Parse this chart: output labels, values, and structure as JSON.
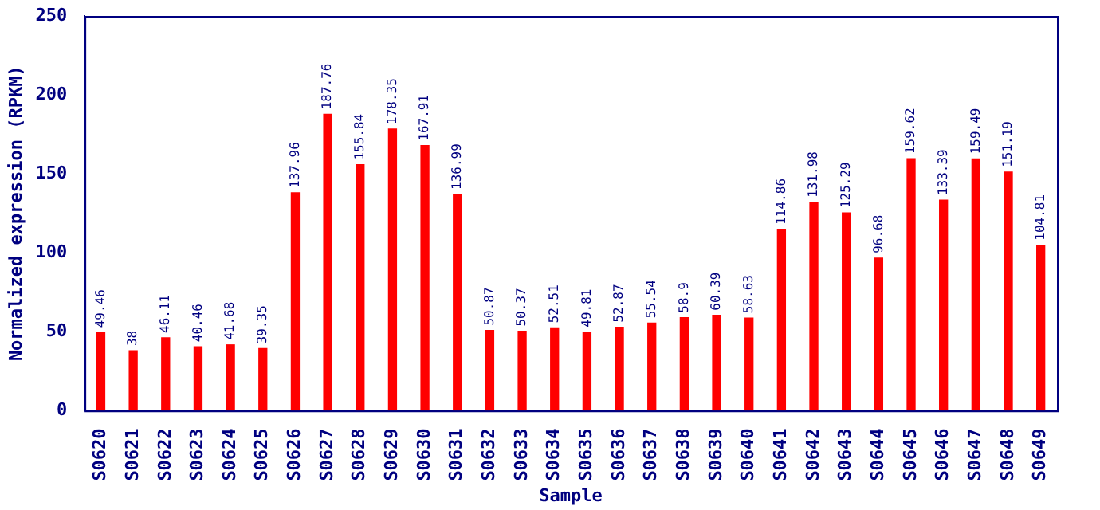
{
  "chart_data": {
    "type": "bar",
    "xlabel": "Sample",
    "ylabel": "Normalized expression (RPKM)",
    "categories": [
      "S0620",
      "S0621",
      "S0622",
      "S0623",
      "S0624",
      "S0625",
      "S0626",
      "S0627",
      "S0628",
      "S0629",
      "S0630",
      "S0631",
      "S0632",
      "S0633",
      "S0634",
      "S0635",
      "S0636",
      "S0637",
      "S0638",
      "S0639",
      "S0640",
      "S0641",
      "S0642",
      "S0643",
      "S0644",
      "S0645",
      "S0646",
      "S0647",
      "S0648",
      "S0649"
    ],
    "values": [
      49.46,
      38,
      46.11,
      40.46,
      41.68,
      39.35,
      137.96,
      187.76,
      155.84,
      178.35,
      167.91,
      136.99,
      50.87,
      50.37,
      52.51,
      49.81,
      52.87,
      55.54,
      58.9,
      60.39,
      58.63,
      114.86,
      131.98,
      125.29,
      96.68,
      159.62,
      133.39,
      159.49,
      151.19,
      104.81
    ],
    "color": "#ff0000",
    "ylim": [
      0,
      250
    ],
    "yticks": [
      0,
      50,
      100,
      150,
      200,
      250
    ],
    "data_labels": true,
    "grid": false,
    "legend": false
  }
}
